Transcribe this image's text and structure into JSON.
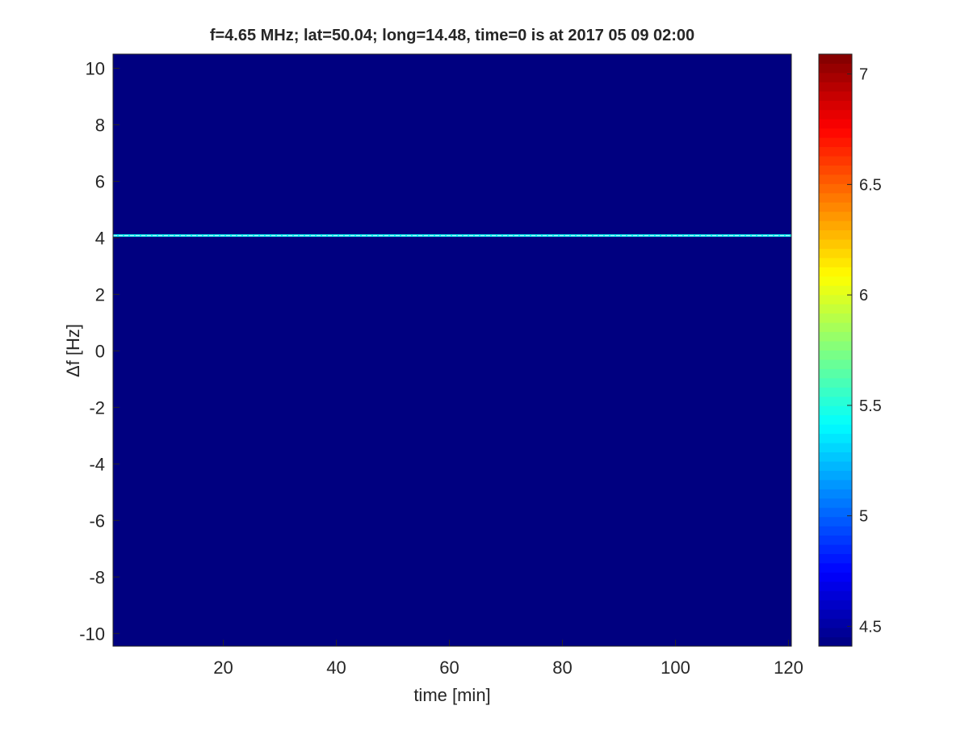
{
  "chart_data": {
    "type": "heatmap",
    "title": "f=4.65 MHz;  lat=50.04; long=14.48, time=0 is at 2017 05 09 02:00",
    "xlabel": "time [min]",
    "ylabel": "Δf [Hz]",
    "xlim": [
      0.5,
      120.5
    ],
    "ylim": [
      -10.45,
      10.5
    ],
    "xticks": [
      20,
      40,
      60,
      80,
      100,
      120
    ],
    "yticks": [
      -10,
      -8,
      -6,
      -4,
      -2,
      0,
      2,
      4,
      6,
      8,
      10
    ],
    "colormap": "jet",
    "clim": [
      4.41,
      7.09
    ],
    "colorbar_ticks": [
      4.5,
      5,
      5.5,
      6,
      6.5,
      7
    ],
    "colorbar_tick_labels": [
      "4.5",
      "5",
      "5.5",
      "6",
      "6.5",
      "7"
    ],
    "background_value": 4.41,
    "ridge": {
      "delta_f": 4.08,
      "value": 5.45,
      "time_range": [
        0.5,
        120.5
      ]
    },
    "grid": false
  }
}
